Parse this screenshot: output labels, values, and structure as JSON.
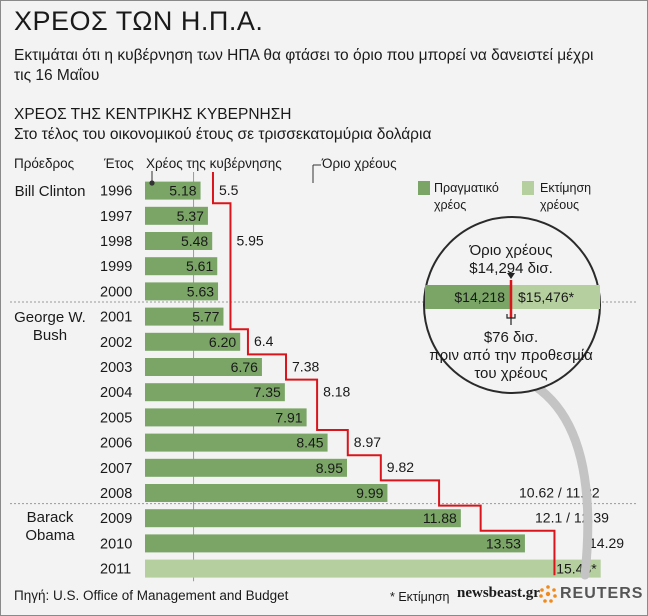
{
  "header": {
    "title": "ΧΡΕΟΣ ΤΩΝ Η.Π.Α.",
    "subtitle": "Εκτιμάται ότι η κυβέρνηση των ΗΠΑ θα φτάσει το όριο που μπορεί να δανειστεί μέχρι τις 16 Μαΐου",
    "section_title": "ΧΡΕΟΣ ΤΗΣ ΚΕΝΤΡΙΚΗΣ ΚΥΒΕΡΝΗΣΗ",
    "section_subtitle": "Στο τέλος του οικονομικού έτους σε τρισσεκατομύρια δολάρια"
  },
  "columns": {
    "president": "Πρόεδρος",
    "year": "Έτος",
    "debt": "Χρέος της κυβέρνησης",
    "limit": "Όριο χρέους"
  },
  "presidents": [
    "Bill Clinton",
    "George W. Bush",
    "Barack Obama"
  ],
  "legend": {
    "actual": "Πραγματικό χρέος",
    "estimate": "Εκτίμηση χρέους"
  },
  "inset": {
    "limit_title": "Όριο χρέους",
    "limit_value": "$14,294 δισ.",
    "left_value": "$14,218",
    "right_value": "$15,476*",
    "gap_value": "$76 δισ.",
    "gap_text_1": "πριν από την προθεσμία",
    "gap_text_2": "του χρέους"
  },
  "footer": {
    "source": "Πηγή: U.S. Office of Management and Budget",
    "estimate_note": "* Εκτίμηση",
    "logo_newsbeast": "newsbeast.gr",
    "logo_reuters": "REUTERS"
  },
  "colors": {
    "actual": "#7aa566",
    "estimate": "#b5cf9f",
    "limit_line": "#d9141b",
    "divider": "#999999"
  },
  "chart_data": {
    "type": "bar",
    "categories": [
      "1996",
      "1997",
      "1998",
      "1999",
      "2000",
      "2001",
      "2002",
      "2003",
      "2004",
      "2005",
      "2006",
      "2007",
      "2008",
      "2009",
      "2010",
      "2011"
    ],
    "series": [
      {
        "name": "Πραγματικό χρέος",
        "values": [
          5.18,
          5.37,
          5.48,
          5.61,
          5.63,
          5.77,
          6.2,
          6.76,
          7.35,
          7.91,
          8.45,
          8.95,
          9.99,
          11.88,
          13.53,
          null
        ]
      },
      {
        "name": "Εκτίμηση χρέους",
        "values": [
          null,
          null,
          null,
          null,
          null,
          null,
          null,
          null,
          null,
          null,
          null,
          null,
          null,
          null,
          null,
          15.48
        ]
      }
    ],
    "value_labels": [
      "5.18",
      "5.37",
      "5.48",
      "5.61",
      "5.63",
      "5.77",
      "6.20",
      "6.76",
      "7.35",
      "7.91",
      "8.45",
      "8.95",
      "9.99",
      "11.88",
      "13.53",
      "15.48*"
    ],
    "debt_limit_labels": [
      "5.5",
      "",
      "5.95",
      "",
      "",
      "",
      "6.4",
      "7.38",
      "8.18",
      "",
      "8.97",
      "9.82",
      "10.62 / 11.32",
      "12.1 / 12.39",
      "14.29",
      ""
    ],
    "debt_limit_steps": [
      {
        "from_row": 0,
        "value": 5.5
      },
      {
        "from_row": 1,
        "value": 5.95
      },
      {
        "from_row": 6,
        "value": 6.4
      },
      {
        "from_row": 7,
        "value": 7.38
      },
      {
        "from_row": 8,
        "value": 8.18
      },
      {
        "from_row": 10,
        "value": 8.97
      },
      {
        "from_row": 11,
        "value": 9.82
      },
      {
        "from_row": 12,
        "value": 11.32
      },
      {
        "from_row": 13,
        "value": 12.39
      },
      {
        "from_row": 14,
        "value": 14.29
      }
    ],
    "xlim": [
      3.75,
      15.9
    ]
  }
}
